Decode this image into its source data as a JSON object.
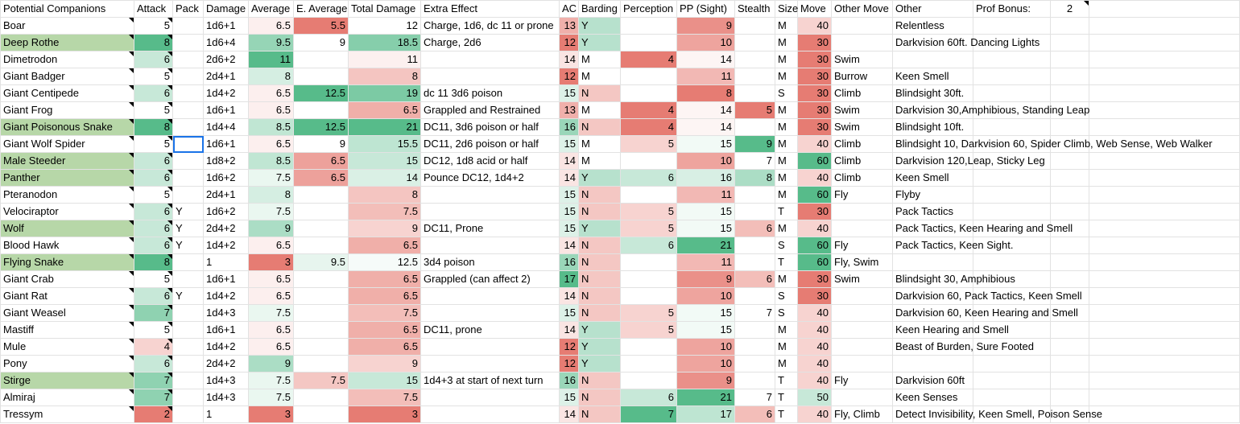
{
  "headers": [
    "Potential Companions",
    "Attack",
    "Pack",
    "Damage",
    "Average",
    "E. Average",
    "Total Damage",
    "Extra Effect",
    "AC",
    "Barding",
    "Perception",
    "PP (Sight)",
    "Stealth",
    "Size",
    "Move",
    "Other Move",
    "Other",
    "Prof Bonus:",
    "2"
  ],
  "rows": [
    [
      "Boar",
      "5",
      "",
      "1d6+1",
      "6.5",
      "5.5",
      "12",
      "Charge, 1d6, dc 11 or prone",
      "13",
      "Y",
      "",
      "9",
      "",
      "M",
      "40",
      "",
      "Relentless"
    ],
    [
      "Deep Rothe",
      "8",
      "",
      "1d6+4",
      "9.5",
      "9",
      "18.5",
      "Charge, 2d6",
      "12",
      "Y",
      "",
      "10",
      "",
      "M",
      "30",
      "",
      "Darkvision 60ft. Dancing Lights"
    ],
    [
      "Dimetrodon",
      "6",
      "",
      "2d6+2",
      "11",
      "",
      "11",
      "",
      "14",
      "M",
      "4",
      "14",
      "",
      "M",
      "30",
      "Swim",
      ""
    ],
    [
      "Giant Badger",
      "5",
      "",
      "2d4+1",
      "8",
      "",
      "8",
      "",
      "12",
      "M",
      "",
      "11",
      "",
      "M",
      "30",
      "Burrow",
      "Keen Smell"
    ],
    [
      "Giant Centipede",
      "6",
      "",
      "1d4+2",
      "6.5",
      "12.5",
      "19",
      "dc 11 3d6 poison",
      "15",
      "N",
      "",
      "8",
      "",
      "S",
      "30",
      "Climb",
      "Blindsight 30ft."
    ],
    [
      "Giant Frog",
      "5",
      "",
      "1d6+1",
      "6.5",
      "",
      "6.5",
      "Grappled and Restrained",
      "13",
      "M",
      "4",
      "14",
      "5",
      "M",
      "30",
      "Swim",
      "Darkvision 30,Amphibious, Standing Leap"
    ],
    [
      "Giant Poisonous Snake",
      "8",
      "",
      "1d4+4",
      "8.5",
      "12.5",
      "21",
      "DC11, 3d6 poison or half",
      "16",
      "N",
      "4",
      "14",
      "",
      "M",
      "30",
      "Swim",
      "Blindsight 10ft."
    ],
    [
      "Giant Wolf Spider",
      "5",
      "",
      "1d6+1",
      "6.5",
      "9",
      "15.5",
      "DC11, 2d6 poison or half",
      "15",
      "M",
      "5",
      "15",
      "9",
      "M",
      "40",
      "Climb",
      "Blindsight 10, Darkvision 60, Spider Climb, Web Sense, Web Walker"
    ],
    [
      "Male Steeder",
      "6",
      "",
      "1d8+2",
      "8.5",
      "6.5",
      "15",
      "DC12, 1d8 acid or half",
      "14",
      "M",
      "",
      "10",
      "7",
      "M",
      "60",
      "Climb",
      "Darkvision 120,Leap, Sticky Leg"
    ],
    [
      "Panther",
      "6",
      "",
      "1d6+2",
      "7.5",
      "6.5",
      "14",
      "Pounce DC12, 1d4+2",
      "14",
      "Y",
      "6",
      "16",
      "8",
      "M",
      "40",
      "Climb",
      "Keen Smell"
    ],
    [
      "Pteranodon",
      "5",
      "",
      "2d4+1",
      "8",
      "",
      "8",
      "",
      "15",
      "N",
      "",
      "11",
      "",
      "M",
      "60",
      "Fly",
      "Flyby"
    ],
    [
      "Velociraptor",
      "6",
      "Y",
      "1d6+2",
      "7.5",
      "",
      "7.5",
      "",
      "15",
      "N",
      "5",
      "15",
      "",
      "T",
      "30",
      "",
      "Pack Tactics"
    ],
    [
      "Wolf",
      "6",
      "Y",
      "2d4+2",
      "9",
      "",
      "9",
      "DC11, Prone",
      "15",
      "Y",
      "5",
      "15",
      "6",
      "M",
      "40",
      "",
      "Pack Tactics, Keen Hearing and Smell"
    ],
    [
      "Blood Hawk",
      "6",
      "Y",
      "1d4+2",
      "6.5",
      "",
      "6.5",
      "",
      "14",
      "N",
      "6",
      "21",
      "",
      "S",
      "60",
      "Fly",
      "Pack Tactics, Keen Sight."
    ],
    [
      "Flying Snake",
      "8",
      "",
      "1",
      "3",
      "9.5",
      "12.5",
      "3d4 poison",
      "16",
      "N",
      "",
      "11",
      "",
      "T",
      "60",
      "Fly, Swim",
      ""
    ],
    [
      "Giant Crab",
      "5",
      "",
      "1d6+1",
      "6.5",
      "",
      "6.5",
      "Grappled (can affect 2)",
      "17",
      "N",
      "",
      "9",
      "6",
      "M",
      "30",
      "Swim",
      "Blindsight 30, Amphibious"
    ],
    [
      "Giant Rat",
      "6",
      "Y",
      "1d4+2",
      "6.5",
      "",
      "6.5",
      "",
      "14",
      "N",
      "",
      "10",
      "",
      "S",
      "30",
      "",
      "Darkvision 60, Pack Tactics, Keen Smell"
    ],
    [
      "Giant Weasel",
      "7",
      "",
      "1d4+3",
      "7.5",
      "",
      "7.5",
      "",
      "15",
      "N",
      "5",
      "15",
      "7",
      "S",
      "40",
      "",
      "Darkvision 60, Keen Hearing and Smell"
    ],
    [
      "Mastiff",
      "5",
      "",
      "1d6+1",
      "6.5",
      "",
      "6.5",
      "DC11, prone",
      "14",
      "Y",
      "5",
      "15",
      "",
      "M",
      "40",
      "",
      "Keen Hearing and Smell"
    ],
    [
      "Mule",
      "4",
      "",
      "1d4+2",
      "6.5",
      "",
      "6.5",
      "",
      "12",
      "Y",
      "",
      "10",
      "",
      "M",
      "40",
      "",
      "Beast of Burden, Sure Footed"
    ],
    [
      "Pony",
      "6",
      "",
      "2d4+2",
      "9",
      "",
      "9",
      "",
      "12",
      "Y",
      "",
      "10",
      "",
      "M",
      "40",
      "",
      ""
    ],
    [
      "Stirge",
      "7",
      "",
      "1d4+3",
      "7.5",
      "7.5",
      "15",
      "1d4+3 at start of next turn",
      "16",
      "N",
      "",
      "9",
      "",
      "T",
      "40",
      "Fly",
      "Darkvision 60ft"
    ],
    [
      "Almiraj",
      "7",
      "",
      "1d4+3",
      "7.5",
      "",
      "7.5",
      "",
      "15",
      "N",
      "6",
      "21",
      "7",
      "T",
      "50",
      "",
      "Keen Senses"
    ],
    [
      "Tressym",
      "2",
      "",
      "1",
      "3",
      "",
      "3",
      "",
      "14",
      "N",
      "7",
      "17",
      "6",
      "T",
      "40",
      "Fly, Climb",
      "Detect Invisibility, Keen Smell, Poison Sense"
    ]
  ],
  "colors": {
    "highlight_green": "#b7d7a8",
    "prof_yellow": "#ffff00",
    "selection_blue": "#1a73e8"
  }
}
